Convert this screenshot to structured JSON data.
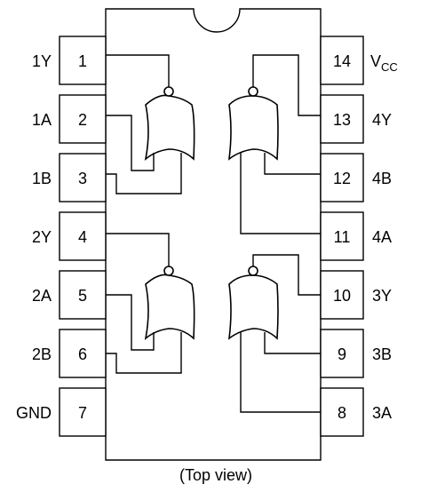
{
  "pins": {
    "p1": {
      "number": "1",
      "name": "1Y"
    },
    "p2": {
      "number": "2",
      "name": "1A"
    },
    "p3": {
      "number": "3",
      "name": "1B"
    },
    "p4": {
      "number": "4",
      "name": "2Y"
    },
    "p5": {
      "number": "5",
      "name": "2A"
    },
    "p6": {
      "number": "6",
      "name": "2B"
    },
    "p7": {
      "number": "7",
      "name": "GND"
    },
    "p8": {
      "number": "8",
      "name": "3A"
    },
    "p9": {
      "number": "9",
      "name": "3B"
    },
    "p10": {
      "number": "10",
      "name": "3Y"
    },
    "p11": {
      "number": "11",
      "name": "4A"
    },
    "p12": {
      "number": "12",
      "name": "4B"
    },
    "p13": {
      "number": "13",
      "name": "4Y"
    },
    "p14": {
      "number": "14",
      "name_base": "V",
      "name_sub": "CC"
    }
  },
  "caption": "(Top view)"
}
